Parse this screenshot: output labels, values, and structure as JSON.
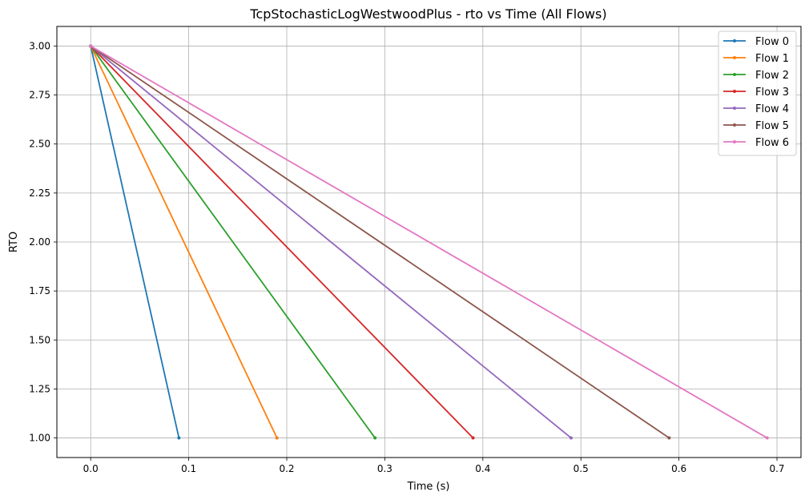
{
  "chart_data": {
    "type": "line",
    "title": "TcpStochasticLogWestwoodPlus - rto vs Time (All Flows)",
    "xlabel": "Time (s)",
    "ylabel": "RTO",
    "xlim": [
      -0.0345,
      0.7245
    ],
    "ylim": [
      0.9,
      3.1
    ],
    "xticks": [
      "0.0",
      "0.1",
      "0.2",
      "0.3",
      "0.4",
      "0.5",
      "0.6",
      "0.7"
    ],
    "yticks": [
      "1.00",
      "1.25",
      "1.50",
      "1.75",
      "2.00",
      "2.25",
      "2.50",
      "2.75",
      "3.00"
    ],
    "grid": true,
    "legend_position": "top-right",
    "series": [
      {
        "name": "Flow 0",
        "color": "#1f77b4",
        "x": [
          0.0,
          0.09
        ],
        "y": [
          3.0,
          1.0
        ]
      },
      {
        "name": "Flow 1",
        "color": "#ff7f0e",
        "x": [
          0.0,
          0.19
        ],
        "y": [
          3.0,
          1.0
        ]
      },
      {
        "name": "Flow 2",
        "color": "#2ca02c",
        "x": [
          0.0,
          0.29
        ],
        "y": [
          3.0,
          1.0
        ]
      },
      {
        "name": "Flow 3",
        "color": "#d62728",
        "x": [
          0.0,
          0.39
        ],
        "y": [
          3.0,
          1.0
        ]
      },
      {
        "name": "Flow 4",
        "color": "#9467bd",
        "x": [
          0.0,
          0.49
        ],
        "y": [
          3.0,
          1.0
        ]
      },
      {
        "name": "Flow 5",
        "color": "#8c564b",
        "x": [
          0.0,
          0.59
        ],
        "y": [
          3.0,
          1.0
        ]
      },
      {
        "name": "Flow 6",
        "color": "#e377c2",
        "x": [
          0.0,
          0.69
        ],
        "y": [
          3.0,
          1.0
        ]
      }
    ]
  }
}
